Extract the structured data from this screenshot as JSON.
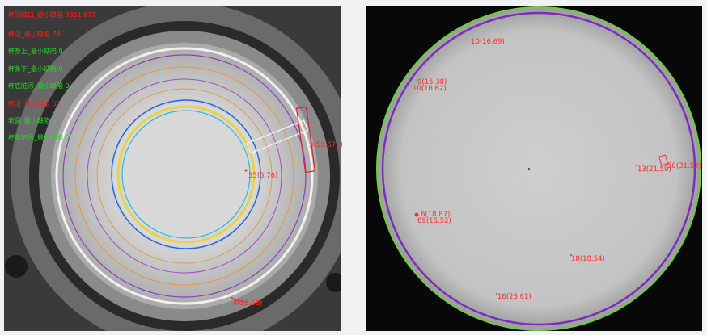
{
  "left_panel": {
    "status_lines": [
      {
        "text": "杯顶缺口_最小缺陷 3351.671",
        "color": "#ff2020"
      },
      {
        "text": "杯沿_最小缺陷 74",
        "color": "#ff2020"
      },
      {
        "text": "杯身上_最小缺陷 0",
        "color": "#22dd22"
      },
      {
        "text": "杯身下_最小缺陷 0",
        "color": "#22dd22"
      },
      {
        "text": "杯底脏污_最小缺陷 0",
        "color": "#22dd22"
      },
      {
        "text": "杯沿_最小缺陷 57",
        "color": "#ff2020"
      },
      {
        "text": "表面_最小缺陷 0",
        "color": "#22dd22"
      },
      {
        "text": "杯身脏污_最小缺陷 0",
        "color": "#22dd22"
      }
    ],
    "defects": [
      "55(5.76)",
      "3(51.671)",
      "4(23.58)"
    ]
  },
  "right_panel": {
    "defects": [
      "10(16.69)",
      "9(15.38)",
      "10(16.62)",
      "13(21.59)",
      "50(31.53)",
      "6(18.87)",
      "69(16.52)",
      "18(18.54)",
      "16(23.61)"
    ]
  },
  "colors": {
    "defect": "#ff2a2a",
    "ok": "#22dd22",
    "outer_ring": "#6ccf3a",
    "inner_ring": "#7a2fb8"
  }
}
